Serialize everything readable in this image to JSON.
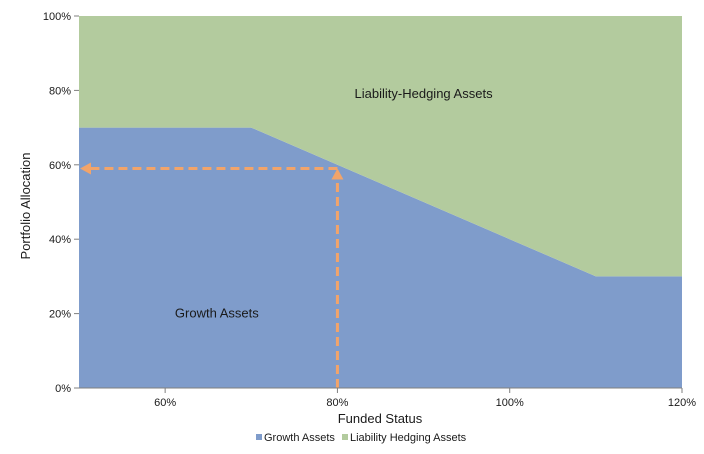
{
  "chart_data": {
    "type": "area",
    "stacked": true,
    "x": [
      50,
      70,
      80,
      100,
      110,
      120
    ],
    "xlim": [
      50,
      120
    ],
    "ylim": [
      0,
      100
    ],
    "x_ticks": [
      60,
      80,
      100,
      120
    ],
    "x_tick_labels": [
      "60%",
      "80%",
      "100%",
      "120%"
    ],
    "y_ticks": [
      0,
      20,
      40,
      60,
      80,
      100
    ],
    "y_tick_labels": [
      "0%",
      "20%",
      "40%",
      "60%",
      "80%",
      "100%"
    ],
    "xlabel": "Funded Status",
    "ylabel": "Portfolio Allocation",
    "legend_position": "bottom",
    "series": [
      {
        "name": "Growth Assets",
        "values": [
          70,
          70,
          60,
          40,
          30,
          30
        ],
        "color": "#7f9ccb"
      },
      {
        "name": "Liability Hedging Assets",
        "values": [
          30,
          30,
          40,
          60,
          70,
          70
        ],
        "color": "#b3cb9e"
      }
    ],
    "annotations": [
      {
        "text": "Liability-Hedging Assets",
        "x": 90,
        "y": 78
      },
      {
        "text": "Growth Assets",
        "x": 66,
        "y": 19
      }
    ],
    "marker": {
      "x": 80,
      "y": 59,
      "color": "#f2a46a",
      "style": "dashed-arrows"
    }
  }
}
